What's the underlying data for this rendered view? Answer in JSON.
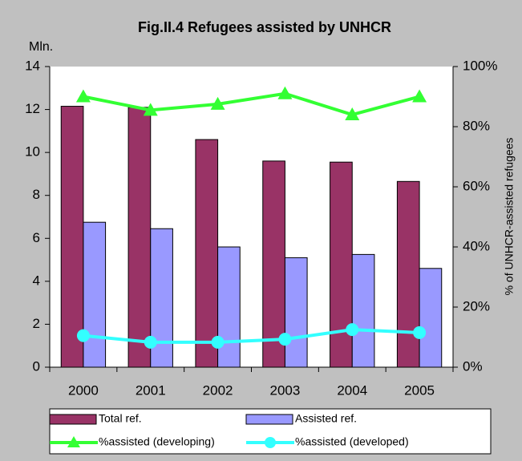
{
  "chart_data": {
    "type": "bar",
    "title": "Fig.II.4 Refugees assisted by UNHCR",
    "y_label": "Mln.",
    "y2_label": "% of UNHCR-assisted refugees",
    "categories": [
      "2000",
      "2001",
      "2002",
      "2003",
      "2004",
      "2005"
    ],
    "series": [
      {
        "name": "Total ref.",
        "type": "bar",
        "color": "#993366",
        "values": [
          12.15,
          12.1,
          10.6,
          9.6,
          9.55,
          8.65
        ]
      },
      {
        "name": "Assisted ref.",
        "type": "bar",
        "color": "#9999ff",
        "values": [
          6.75,
          6.45,
          5.6,
          5.1,
          5.25,
          4.6
        ]
      },
      {
        "name": "%assisted (developing)",
        "type": "line",
        "marker": "triangle",
        "axis": "y2",
        "color": "#33ff33",
        "values": [
          90,
          85.5,
          87.5,
          91,
          84,
          90
        ]
      },
      {
        "name": "%assisted (developed)",
        "type": "line",
        "marker": "circle",
        "axis": "y2",
        "color": "#33ffff",
        "values": [
          10.5,
          8.3,
          8.3,
          9.3,
          12.5,
          11.5
        ]
      }
    ],
    "ylim": [
      0,
      14
    ],
    "yticks": [
      0,
      2,
      4,
      6,
      8,
      10,
      12,
      14
    ],
    "y2lim": [
      0,
      100
    ],
    "y2ticks": [
      {
        "value": 0,
        "label": "0%"
      },
      {
        "value": 20,
        "label": "20%"
      },
      {
        "value": 40,
        "label": "40%"
      },
      {
        "value": 60,
        "label": "60%"
      },
      {
        "value": 80,
        "label": "80%"
      },
      {
        "value": 100,
        "label": "100%"
      }
    ],
    "grid": false,
    "legend": "bottom"
  }
}
